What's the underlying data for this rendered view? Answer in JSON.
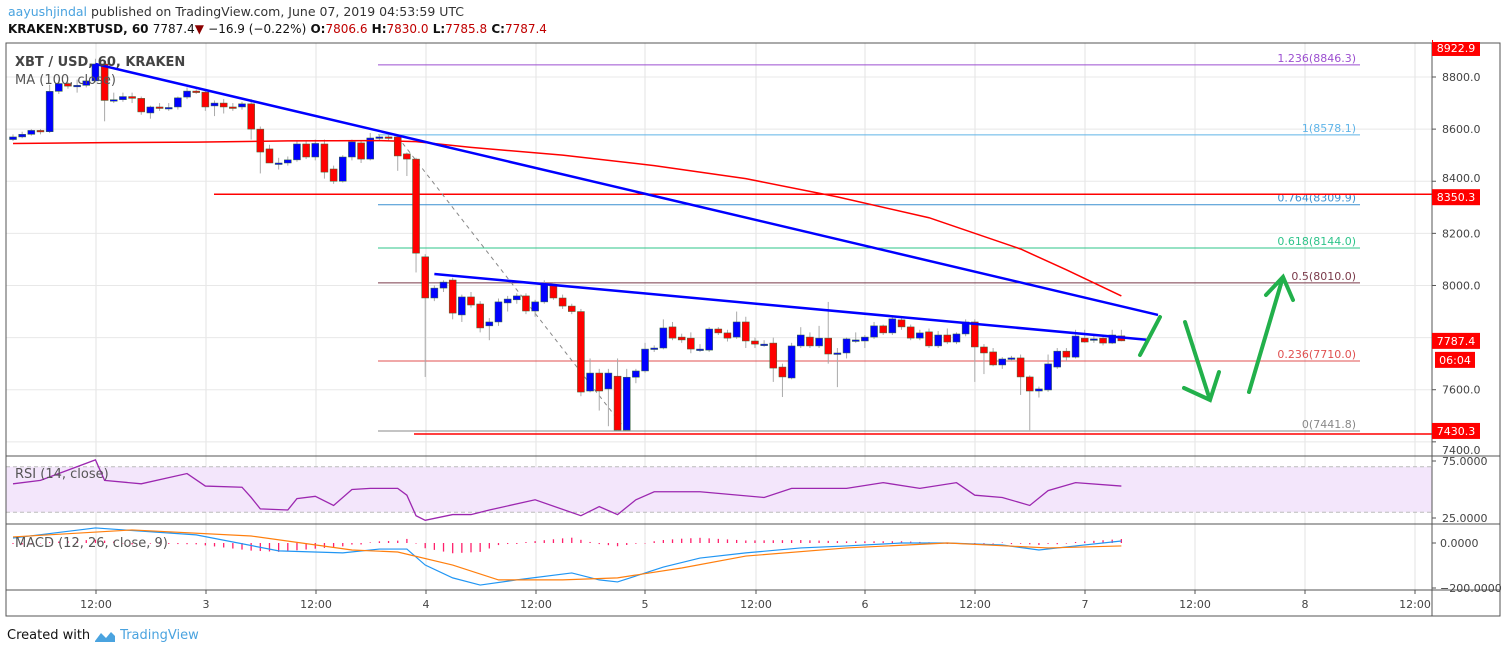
{
  "header": {
    "author": "aayushjindal",
    "published": "published on TradingView.com, June 07, 2019 04:53:59 UTC",
    "symbol": "KRAKEN:XBTUSD, 60",
    "last": "7787.4",
    "change": "−16.9 (−0.22%)",
    "o_label": "O:",
    "o": "7806.6",
    "h_label": "H:",
    "h": "7830.0",
    "l_label": "L:",
    "l": "7785.8",
    "c_label": "C:",
    "c": "7787.4"
  },
  "footer": {
    "created_with": "Created with",
    "brand": "TradingView"
  },
  "colors": {
    "up": "#0000ff",
    "down": "#ff0000",
    "ma": "#ff0000",
    "trendline": "#0000ff",
    "arrows": "#22b04b",
    "rsi": "#9c27b0",
    "macd": "#2196f3",
    "signal": "#ff7f0e",
    "histogram": "#ff1f6b"
  },
  "chart_data": {
    "type": "candlestick",
    "title": "XBT / USD, 60, KRAKEN",
    "indicator_label": "MA (100, close)",
    "y_ticks": [
      "8800.0",
      "8600.0",
      "8400.0",
      "8200.0",
      "8000.0",
      "7600.0",
      "7400.0"
    ],
    "x_ticks": [
      "12:00",
      "3",
      "12:00",
      "4",
      "12:00",
      "5",
      "12:00",
      "6",
      "12:00",
      "7",
      "12:00",
      "8",
      "12:00"
    ],
    "price_labels": {
      "top": "8922.9",
      "resistance": "8350.3",
      "last": "7787.4",
      "countdown": "06:04",
      "support": "7430.3"
    },
    "horizontal_levels": {
      "resistance": 8350.3,
      "support": 7430.3
    },
    "fibonacci": [
      {
        "label": "1.236(8846.3)",
        "value": 8846.3,
        "color": "#9c4fd0"
      },
      {
        "label": "1(8578.1)",
        "value": 8578.1,
        "color": "#5fb4e8"
      },
      {
        "label": "0.764(8309.9)",
        "value": 8309.9,
        "color": "#3a8fd0"
      },
      {
        "label": "0.618(8144.0)",
        "value": 8144.0,
        "color": "#2ec48a"
      },
      {
        "label": "0.5(8010.0)",
        "value": 8010.0,
        "color": "#7a3a4a"
      },
      {
        "label": "0.236(7710.0)",
        "value": 7710.0,
        "color": "#e05050"
      },
      {
        "label": "0(7441.8)",
        "value": 7441.8,
        "color": "#888888"
      }
    ],
    "candles_ohlc": [
      [
        8560,
        8580,
        8555,
        8570
      ],
      [
        8570,
        8590,
        8565,
        8580
      ],
      [
        8580,
        8600,
        8575,
        8595
      ],
      [
        8595,
        8600,
        8580,
        8590
      ],
      [
        8590,
        8770,
        8585,
        8745
      ],
      [
        8745,
        8790,
        8735,
        8775
      ],
      [
        8775,
        8780,
        8755,
        8765
      ],
      [
        8765,
        8790,
        8740,
        8768
      ],
      [
        8768,
        8795,
        8760,
        8785
      ],
      [
        8785,
        8870,
        8780,
        8850
      ],
      [
        8850,
        8860,
        8630,
        8710
      ],
      [
        8710,
        8740,
        8700,
        8713
      ],
      [
        8713,
        8740,
        8705,
        8725
      ],
      [
        8725,
        8740,
        8700,
        8718
      ],
      [
        8718,
        8725,
        8655,
        8666
      ],
      [
        8662,
        8690,
        8640,
        8685
      ],
      [
        8685,
        8700,
        8670,
        8683
      ],
      [
        8683,
        8700,
        8670,
        8683
      ],
      [
        8685,
        8725,
        8675,
        8720
      ],
      [
        8723,
        8760,
        8715,
        8746
      ],
      [
        8746,
        8752,
        8735,
        8742
      ],
      [
        8742,
        8750,
        8670,
        8685
      ],
      [
        8689,
        8710,
        8650,
        8700
      ],
      [
        8700,
        8715,
        8660,
        8685
      ],
      [
        8685,
        8700,
        8670,
        8683
      ],
      [
        8685,
        8705,
        8675,
        8697
      ],
      [
        8697,
        8715,
        8560,
        8600
      ],
      [
        8600,
        8610,
        8430,
        8512
      ],
      [
        8524,
        8540,
        8470,
        8470
      ],
      [
        8470,
        8490,
        8445,
        8470
      ],
      [
        8470,
        8495,
        8460,
        8482
      ],
      [
        8482,
        8555,
        8475,
        8543
      ],
      [
        8543,
        8555,
        8485,
        8493
      ],
      [
        8493,
        8560,
        8480,
        8545
      ],
      [
        8543,
        8560,
        8410,
        8435
      ],
      [
        8447,
        8460,
        8390,
        8400
      ],
      [
        8400,
        8500,
        8395,
        8493
      ],
      [
        8493,
        8560,
        8480,
        8551
      ],
      [
        8547,
        8555,
        8470,
        8485
      ],
      [
        8485,
        8585,
        8480,
        8566
      ],
      [
        8566,
        8580,
        8555,
        8570
      ],
      [
        8570,
        8580,
        8555,
        8568
      ],
      [
        8570,
        8575,
        8440,
        8497
      ],
      [
        8505,
        8510,
        8420,
        8485
      ],
      [
        8485,
        8490,
        8050,
        8124
      ],
      [
        8110,
        8120,
        7649,
        7952
      ],
      [
        7952,
        8000,
        7940,
        7990
      ],
      [
        7990,
        8020,
        7975,
        8013
      ],
      [
        8021,
        8030,
        7870,
        7894
      ],
      [
        7887,
        7965,
        7860,
        7956
      ],
      [
        7956,
        7975,
        7915,
        7925
      ],
      [
        7929,
        7940,
        7820,
        7837
      ],
      [
        7845,
        7875,
        7790,
        7860
      ],
      [
        7860,
        7950,
        7845,
        7937
      ],
      [
        7933,
        7960,
        7900,
        7948
      ],
      [
        7945,
        7970,
        7930,
        7960
      ],
      [
        7960,
        7970,
        7890,
        7902
      ],
      [
        7902,
        7945,
        7880,
        7937
      ],
      [
        7937,
        8020,
        7930,
        8006
      ],
      [
        8000,
        8010,
        7945,
        7952
      ],
      [
        7952,
        7965,
        7910,
        7921
      ],
      [
        7921,
        7930,
        7890,
        7900
      ],
      [
        7900,
        7910,
        7575,
        7591
      ],
      [
        7595,
        7720,
        7590,
        7664
      ],
      [
        7664,
        7680,
        7520,
        7595
      ],
      [
        7603,
        7680,
        7460,
        7664
      ],
      [
        7652,
        7720,
        7441.8,
        7445
      ],
      [
        7445,
        7680,
        7441.8,
        7648
      ],
      [
        7648,
        7680,
        7625,
        7672
      ],
      [
        7672,
        7780,
        7665,
        7756
      ],
      [
        7756,
        7770,
        7745,
        7760
      ],
      [
        7760,
        7870,
        7755,
        7837
      ],
      [
        7841,
        7860,
        7790,
        7798
      ],
      [
        7802,
        7815,
        7780,
        7791
      ],
      [
        7798,
        7820,
        7740,
        7756
      ],
      [
        7756,
        7775,
        7745,
        7756
      ],
      [
        7752,
        7840,
        7745,
        7833
      ],
      [
        7833,
        7840,
        7810,
        7818
      ],
      [
        7818,
        7830,
        7785,
        7798
      ],
      [
        7802,
        7900,
        7795,
        7860
      ],
      [
        7860,
        7880,
        7760,
        7787
      ],
      [
        7787,
        7800,
        7760,
        7775
      ],
      [
        7775,
        7790,
        7765,
        7775
      ],
      [
        7779,
        7800,
        7630,
        7683
      ],
      [
        7687,
        7700,
        7572,
        7649
      ],
      [
        7645,
        7780,
        7640,
        7768
      ],
      [
        7768,
        7840,
        7760,
        7810
      ],
      [
        7802,
        7820,
        7760,
        7768
      ],
      [
        7768,
        7845,
        7760,
        7798
      ],
      [
        7798,
        7937,
        7700,
        7737
      ],
      [
        7737,
        7760,
        7610,
        7741
      ],
      [
        7741,
        7800,
        7720,
        7795
      ],
      [
        7791,
        7820,
        7780,
        7791
      ],
      [
        7787,
        7810,
        7760,
        7802
      ],
      [
        7802,
        7860,
        7795,
        7845
      ],
      [
        7845,
        7850,
        7810,
        7818
      ],
      [
        7818,
        7880,
        7810,
        7872
      ],
      [
        7868,
        7875,
        7830,
        7841
      ],
      [
        7841,
        7850,
        7790,
        7798
      ],
      [
        7798,
        7830,
        7790,
        7818
      ],
      [
        7822,
        7835,
        7760,
        7768
      ],
      [
        7768,
        7825,
        7760,
        7810
      ],
      [
        7810,
        7835,
        7775,
        7783
      ],
      [
        7783,
        7820,
        7775,
        7814
      ],
      [
        7814,
        7870,
        7805,
        7860
      ],
      [
        7860,
        7870,
        7630,
        7764
      ],
      [
        7764,
        7775,
        7660,
        7741
      ],
      [
        7745,
        7760,
        7690,
        7695
      ],
      [
        7695,
        7725,
        7680,
        7718
      ],
      [
        7718,
        7730,
        7710,
        7722
      ],
      [
        7722,
        7735,
        7580,
        7649
      ],
      [
        7649,
        7655,
        7445,
        7595
      ],
      [
        7595,
        7612,
        7570,
        7603
      ],
      [
        7599,
        7735,
        7592,
        7699
      ],
      [
        7687,
        7760,
        7680,
        7748
      ],
      [
        7748,
        7760,
        7710,
        7725
      ],
      [
        7725,
        7830,
        7720,
        7806
      ],
      [
        7798,
        7830,
        7780,
        7783
      ],
      [
        7795,
        7810,
        7780,
        7795
      ],
      [
        7798,
        7808,
        7770,
        7779
      ],
      [
        7779,
        7830,
        7775,
        7810
      ],
      [
        7806.6,
        7830.0,
        7785.8,
        7787.4
      ]
    ],
    "ma_100": [
      [
        0,
        8545
      ],
      [
        10,
        8548
      ],
      [
        20,
        8550
      ],
      [
        30,
        8555
      ],
      [
        40,
        8556
      ],
      [
        44,
        8552
      ],
      [
        50,
        8530
      ],
      [
        60,
        8500
      ],
      [
        70,
        8460
      ],
      [
        80,
        8410
      ],
      [
        90,
        8340
      ],
      [
        100,
        8260
      ],
      [
        110,
        8140
      ],
      [
        115,
        8060
      ],
      [
        121,
        7960
      ]
    ],
    "trendlines": [
      {
        "from": [
          9,
          8850
        ],
        "to": [
          125,
          7887
        ]
      },
      {
        "from": [
          46,
          8044
        ],
        "to": [
          124,
          7791
        ]
      }
    ],
    "fib_anchor_line": {
      "from": [
        42,
        8570
      ],
      "to": [
        67,
        7441.8
      ]
    },
    "rsi": {
      "label": "RSI (14, close)",
      "ticks": [
        "75.0000",
        "25.0000"
      ],
      "upper": 70,
      "lower": 30,
      "points": [
        [
          0,
          55
        ],
        [
          3,
          58
        ],
        [
          9,
          76
        ],
        [
          10,
          58
        ],
        [
          14,
          55
        ],
        [
          19,
          64
        ],
        [
          21,
          53
        ],
        [
          25,
          52
        ],
        [
          26,
          43
        ],
        [
          27,
          33
        ],
        [
          30,
          32
        ],
        [
          31,
          42
        ],
        [
          33,
          44
        ],
        [
          35,
          36
        ],
        [
          37,
          50
        ],
        [
          39,
          51
        ],
        [
          42,
          51
        ],
        [
          43,
          45
        ],
        [
          44,
          27
        ],
        [
          45,
          23
        ],
        [
          48,
          28
        ],
        [
          50,
          28
        ],
        [
          52,
          32
        ],
        [
          57,
          41
        ],
        [
          62,
          27
        ],
        [
          64,
          35
        ],
        [
          66,
          28
        ],
        [
          68,
          41
        ],
        [
          70,
          48
        ],
        [
          75,
          48
        ],
        [
          82,
          43
        ],
        [
          85,
          51
        ],
        [
          91,
          51
        ],
        [
          95,
          56
        ],
        [
          99,
          51
        ],
        [
          103,
          56
        ],
        [
          105,
          45
        ],
        [
          108,
          43
        ],
        [
          111,
          36
        ],
        [
          113,
          49
        ],
        [
          116,
          56
        ],
        [
          121,
          53
        ]
      ]
    },
    "macd": {
      "label": "MACD (12, 26, close, 9)",
      "ticks": [
        "0.0000",
        "−200.0000"
      ],
      "macd_points": [
        [
          0,
          22
        ],
        [
          9,
          67
        ],
        [
          20,
          36
        ],
        [
          29,
          -35
        ],
        [
          36,
          -44
        ],
        [
          40,
          -27
        ],
        [
          43,
          -27
        ],
        [
          45,
          -98
        ],
        [
          48,
          -155
        ],
        [
          51,
          -187
        ],
        [
          55,
          -164
        ],
        [
          61,
          -133
        ],
        [
          64,
          -164
        ],
        [
          66,
          -173
        ],
        [
          71,
          -107
        ],
        [
          75,
          -67
        ],
        [
          80,
          -44
        ],
        [
          86,
          -22
        ],
        [
          91,
          -13
        ],
        [
          97,
          0
        ],
        [
          102,
          0
        ],
        [
          108,
          -9
        ],
        [
          112,
          -31
        ],
        [
          116,
          -13
        ],
        [
          121,
          9
        ]
      ],
      "signal_points": [
        [
          0,
          27
        ],
        [
          13,
          58
        ],
        [
          26,
          31
        ],
        [
          37,
          -31
        ],
        [
          42,
          -40
        ],
        [
          48,
          -98
        ],
        [
          53,
          -164
        ],
        [
          60,
          -164
        ],
        [
          66,
          -155
        ],
        [
          73,
          -111
        ],
        [
          80,
          -58
        ],
        [
          91,
          -22
        ],
        [
          102,
          0
        ],
        [
          113,
          -22
        ],
        [
          121,
          -13
        ]
      ]
    },
    "annotations": [
      "green-arrow-breakout",
      "green-arrow-down",
      "green-arrow-up"
    ]
  }
}
